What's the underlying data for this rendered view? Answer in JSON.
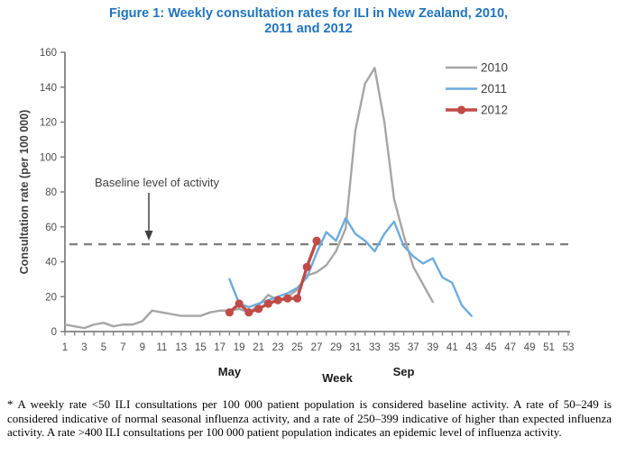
{
  "title": {
    "line1": "Figure 1: Weekly consultation rates for ILI in New Zealand, 2010,",
    "line2": "2011 and 2012",
    "color": "#1f74bd"
  },
  "chart_data": {
    "type": "line",
    "title": "Figure 1: Weekly consultation rates for ILI in New Zealand, 2010, 2011 and 2012",
    "xlabel": "Week",
    "ylabel": "Consultation rate (per 100 000)",
    "xlim": [
      1,
      53
    ],
    "ylim": [
      0,
      160
    ],
    "grid": false,
    "legend_position": "top-right",
    "x_ticks": [
      1,
      3,
      5,
      7,
      9,
      11,
      13,
      15,
      17,
      19,
      21,
      23,
      25,
      27,
      29,
      31,
      33,
      35,
      37,
      39,
      41,
      43,
      45,
      47,
      49,
      51,
      53
    ],
    "y_ticks": [
      0,
      20,
      40,
      60,
      80,
      100,
      120,
      140,
      160
    ],
    "month_labels": [
      {
        "label": "May",
        "week": 18
      },
      {
        "label": "Sep",
        "week": 36
      }
    ],
    "baseline": {
      "value": 50,
      "label": "Baseline level of activity",
      "style": "dashed",
      "color": "#7f7f7f"
    },
    "series": [
      {
        "name": "2010",
        "color": "#a6a6a6",
        "start_week": 1,
        "marker": false,
        "values": [
          4,
          3,
          2,
          4,
          5,
          3,
          4,
          4,
          6,
          12,
          11,
          10,
          9,
          9,
          9,
          11,
          12,
          12,
          13,
          11,
          15,
          21,
          18,
          20,
          24,
          32,
          34,
          38,
          46,
          59,
          115,
          142,
          151,
          120,
          76,
          55,
          37,
          27,
          17
        ]
      },
      {
        "name": "2011",
        "color": "#6cacde",
        "start_week": 18,
        "marker": false,
        "values": [
          30,
          16,
          14,
          16,
          18,
          20,
          22,
          25,
          31,
          45,
          57,
          52,
          65,
          56,
          52,
          46,
          56,
          63,
          49,
          43,
          39,
          42,
          31,
          28,
          15,
          9
        ]
      },
      {
        "name": "2012",
        "color": "#c04b47",
        "start_week": 18,
        "marker": true,
        "values": [
          11,
          16,
          11,
          13,
          16,
          18,
          19,
          19,
          37,
          52
        ]
      }
    ],
    "axis_color": "#808080",
    "tick_label_color": "#4d4d4d",
    "annotation_color": "#404040"
  },
  "footnote": "* A weekly rate <50 ILI consultations per 100 000 patient population is considered baseline activity. A rate of 50–249 is considered indicative of normal seasonal influenza activity, and a rate of 250–399 indicative of higher than expected influenza activity. A rate >400 ILI consultations per 100 000 patient population indicates an epidemic level of influenza activity."
}
